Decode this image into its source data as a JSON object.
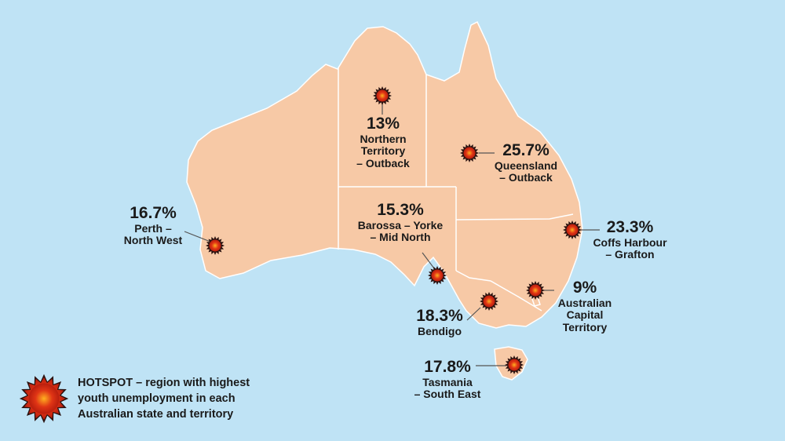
{
  "colors": {
    "sea": "#bfe3f5",
    "land": "#f7c9a6",
    "border": "#ffffff",
    "hotspot_outer": "#2a1210",
    "hotspot_inner": "#e03515",
    "hotspot_core": "#ffb020"
  },
  "legend": {
    "icon": "hotspot-starburst-icon",
    "text": "HOTSPOT – region with highest youth unemployment in each Australian state and territory"
  },
  "hotspots": [
    {
      "id": "nt",
      "percent": "13%",
      "name_lines": [
        "Northern",
        "Territory",
        "– Outback"
      ]
    },
    {
      "id": "qld",
      "percent": "25.7%",
      "name_lines": [
        "Queensland",
        "– Outback"
      ]
    },
    {
      "id": "wa",
      "percent": "16.7%",
      "name_lines": [
        "Perth –",
        "North West"
      ]
    },
    {
      "id": "sa",
      "percent": "15.3%",
      "name_lines": [
        "Barossa – Yorke",
        "– Mid North"
      ]
    },
    {
      "id": "nsw",
      "percent": "23.3%",
      "name_lines": [
        "Coffs Harbour",
        "– Grafton"
      ]
    },
    {
      "id": "act",
      "percent": "9%",
      "name_lines": [
        "Australian",
        "Capital",
        "Territory"
      ]
    },
    {
      "id": "vic",
      "percent": "18.3%",
      "name_lines": [
        "Bendigo"
      ]
    },
    {
      "id": "tas",
      "percent": "17.8%",
      "name_lines": [
        "Tasmania",
        "– South East"
      ]
    }
  ]
}
